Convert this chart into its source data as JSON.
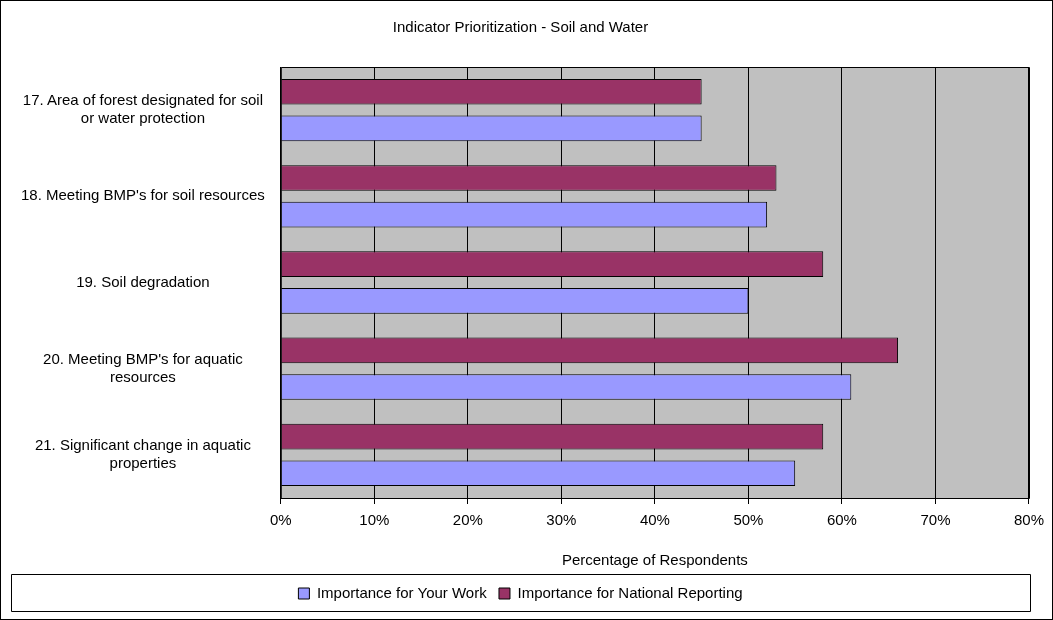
{
  "chart_data": {
    "type": "bar",
    "orientation": "horizontal",
    "title": "Indicator Prioritization - Soil and Water",
    "xlabel": "Percentage of Respondents",
    "categories": [
      "17. Area of forest designated for soil or water protection",
      "18. Meeting BMP's for soil resources",
      "19. Soil degradation",
      "20. Meeting BMP's for aquatic resources",
      "21. Significant change in aquatic properties"
    ],
    "series": [
      {
        "name": "Importance for Your Work",
        "color": "#9999ff",
        "values": [
          45,
          52,
          50,
          61,
          55
        ]
      },
      {
        "name": "Importance for National Reporting",
        "color": "#993366",
        "values": [
          45,
          53,
          58,
          66,
          58
        ]
      }
    ],
    "xlim": [
      0,
      80
    ],
    "xticks": [
      {
        "value": 0,
        "label": "0%"
      },
      {
        "value": 10,
        "label": "10%"
      },
      {
        "value": 20,
        "label": "20%"
      },
      {
        "value": 30,
        "label": "30%"
      },
      {
        "value": 40,
        "label": "40%"
      },
      {
        "value": 50,
        "label": "50%"
      },
      {
        "value": 60,
        "label": "60%"
      },
      {
        "value": 70,
        "label": "70%"
      },
      {
        "value": 80,
        "label": "80%"
      }
    ],
    "grid": "x",
    "legend": "bottom"
  }
}
